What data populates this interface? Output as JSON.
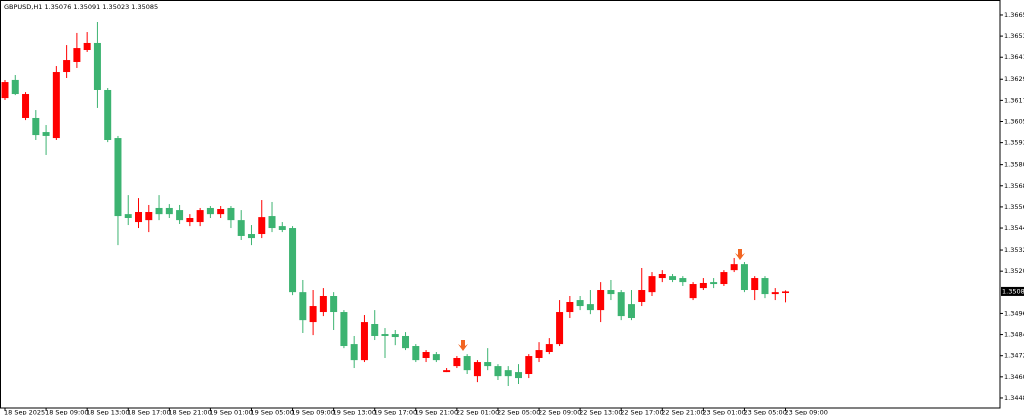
{
  "chart_data": {
    "type": "candlestick",
    "title": "GBPUSD,H1  1.35076 1.35091 1.35023 1.35085",
    "up_color": "#ff0000",
    "down_color": "#3cb371",
    "categories": [
      "18 Sep 2025",
      null,
      null,
      null,
      "18 Sep 09:00",
      null,
      null,
      null,
      "18 Sep 13:00",
      null,
      null,
      null,
      "18 Sep 17:00",
      null,
      null,
      null,
      "18 Sep 21:00",
      null,
      null,
      null,
      "19 Sep 01:00",
      null,
      null,
      null,
      "19 Sep 05:00",
      null,
      null,
      null,
      "19 Sep 09:00",
      null,
      null,
      null,
      "19 Sep 13:00",
      null,
      null,
      null,
      "19 Sep 17:00",
      null,
      null,
      null,
      "19 Sep 21:00",
      null,
      null,
      null,
      "22 Sep 01:00",
      null,
      null,
      null,
      "22 Sep 05:00",
      null,
      null,
      null,
      "22 Sep 09:00",
      null,
      null,
      null,
      "22 Sep 13:00",
      null,
      null,
      null,
      "22 Sep 17:00",
      null,
      null,
      null,
      "22 Sep 21:00",
      null,
      null,
      null,
      "23 Sep 01:00",
      null,
      null,
      null,
      "23 Sep 05:00",
      null,
      null,
      null,
      "23 Sep 09:00"
    ],
    "open": [
      1.36183,
      1.36286,
      1.3607,
      1.3607,
      1.3599,
      1.35956,
      1.36331,
      1.36388,
      1.36456,
      1.36496,
      1.36229,
      1.35956,
      1.35524,
      1.35479,
      1.3549,
      1.35559,
      1.35559,
      1.35547,
      1.35479,
      1.35479,
      1.35559,
      1.35524,
      1.35559,
      1.3549,
      1.35411,
      1.35411,
      1.35513,
      1.35456,
      1.35445,
      1.35081,
      1.34911,
      1.34968,
      1.35059,
      1.34968,
      1.34786,
      1.34695,
      1.349,
      1.34843,
      1.34843,
      1.34832,
      1.34775,
      1.34707,
      1.34729,
      1.34627,
      1.34661,
      1.34718,
      1.34604,
      1.34684,
      1.34661,
      1.34638,
      1.34627,
      1.34616,
      1.34707,
      1.34741,
      1.34786,
      1.34968,
      1.35036,
      1.35013,
      1.34979,
      1.35093,
      1.35081,
      1.35013,
      1.35025,
      1.35081,
      1.35161,
      1.35172,
      1.35161,
      1.35047,
      1.35104,
      1.35138,
      1.35127,
      1.35206,
      1.3524,
      1.35093,
      1.35161,
      1.3507,
      1.35076
    ],
    "high": [
      1.36286,
      1.36314,
      1.36217,
      1.36115,
      1.3603,
      1.36365,
      1.36484,
      1.36553,
      1.36558,
      1.36615,
      1.3624,
      1.35968,
      1.35632,
      1.35615,
      1.35576,
      1.35632,
      1.35581,
      1.35576,
      1.35524,
      1.35559,
      1.3557,
      1.3557,
      1.3557,
      1.35547,
      1.35462,
      1.35604,
      1.35593,
      1.35479,
      1.35456,
      1.3515,
      1.35093,
      1.35104,
      1.35081,
      1.34979,
      1.34832,
      1.34951,
      1.34979,
      1.34877,
      1.34866,
      1.34854,
      1.34786,
      1.34752,
      1.34741,
      1.3465,
      1.34718,
      1.34729,
      1.34695,
      1.34763,
      1.34672,
      1.34661,
      1.34672,
      1.34729,
      1.34797,
      1.3482,
      1.35036,
      1.35059,
      1.35059,
      1.35093,
      1.35138,
      1.3515,
      1.35093,
      1.35093,
      1.35218,
      1.35195,
      1.35206,
      1.35184,
      1.35172,
      1.35138,
      1.35161,
      1.35161,
      1.35206,
      1.35275,
      1.35252,
      1.35172,
      1.35172,
      1.35104,
      1.35091
    ],
    "low": [
      1.36172,
      1.362,
      1.36058,
      1.35945,
      1.3586,
      1.35945,
      1.36297,
      1.36354,
      1.36445,
      1.36127,
      1.35933,
      1.35348,
      1.35462,
      1.35445,
      1.35422,
      1.3549,
      1.35502,
      1.35468,
      1.35456,
      1.35456,
      1.35502,
      1.35502,
      1.35445,
      1.35377,
      1.35348,
      1.35388,
      1.35422,
      1.35422,
      1.35064,
      1.34849,
      1.34837,
      1.34945,
      1.34866,
      1.34763,
      1.3465,
      1.34684,
      1.34809,
      1.34707,
      1.3478,
      1.34752,
      1.34684,
      1.34684,
      1.34684,
      1.34627,
      1.3465,
      1.34616,
      1.3457,
      1.34638,
      1.34582,
      1.34548,
      1.34559,
      1.34593,
      1.34684,
      1.34729,
      1.34775,
      1.34934,
      1.34979,
      1.34956,
      1.34911,
      1.35036,
      1.34922,
      1.34922,
      1.35002,
      1.35059,
      1.35138,
      1.35138,
      1.35116,
      1.35036,
      1.35093,
      1.35104,
      1.35116,
      1.35195,
      1.35081,
      1.35036,
      1.35047,
      1.35036,
      1.35023
    ],
    "close": [
      1.36274,
      1.36206,
      1.36206,
      1.35973,
      1.35968,
      1.36331,
      1.36399,
      1.36467,
      1.36496,
      1.36229,
      1.35945,
      1.35513,
      1.35502,
      1.35536,
      1.35536,
      1.35524,
      1.35524,
      1.3549,
      1.35502,
      1.35547,
      1.35524,
      1.35553,
      1.3549,
      1.354,
      1.35388,
      1.35507,
      1.35445,
      1.35434,
      1.35081,
      1.34922,
      1.35002,
      1.35059,
      1.34968,
      1.34775,
      1.34695,
      1.34911,
      1.34832,
      1.34832,
      1.34826,
      1.34763,
      1.34695,
      1.34741,
      1.34695,
      1.34638,
      1.34707,
      1.34638,
      1.34684,
      1.34661,
      1.34604,
      1.34604,
      1.34593,
      1.34718,
      1.34752,
      1.34786,
      1.34968,
      1.35025,
      1.35002,
      1.34979,
      1.35093,
      1.3507,
      1.34945,
      1.34934,
      1.35093,
      1.35172,
      1.35184,
      1.3515,
      1.35138,
      1.35127,
      1.35133,
      1.35127,
      1.35195,
      1.3524,
      1.35093,
      1.35161,
      1.3507,
      1.35081,
      1.35085
    ],
    "ylim": [
      1.34423,
      1.3674
    ],
    "yticks": [
      1.36655,
      1.36535,
      1.36415,
      {
        "value": 1.3629,
        "label": "1.36290"
      },
      {
        "value": 1.3617,
        "label": "1.36170"
      },
      {
        "value": 1.3605,
        "label": "1.36050"
      },
      {
        "value": 1.3593,
        "label": "1.35930"
      },
      1.35805,
      1.35685,
      1.35565,
      1.35445,
      {
        "value": 1.3532,
        "label": "1.35320"
      },
      {
        "value": 1.352,
        "label": "1.35200"
      },
      {
        "value": 1.3496,
        "label": "1.34960"
      },
      {
        "value": 1.3484,
        "label": "1.34840"
      },
      {
        "value": 1.3472,
        "label": "1.34720"
      },
      {
        "value": 1.346,
        "label": "1.34600"
      },
      {
        "value": 1.3448,
        "label": "1.34480"
      }
    ],
    "last_price": 1.35085
  }
}
